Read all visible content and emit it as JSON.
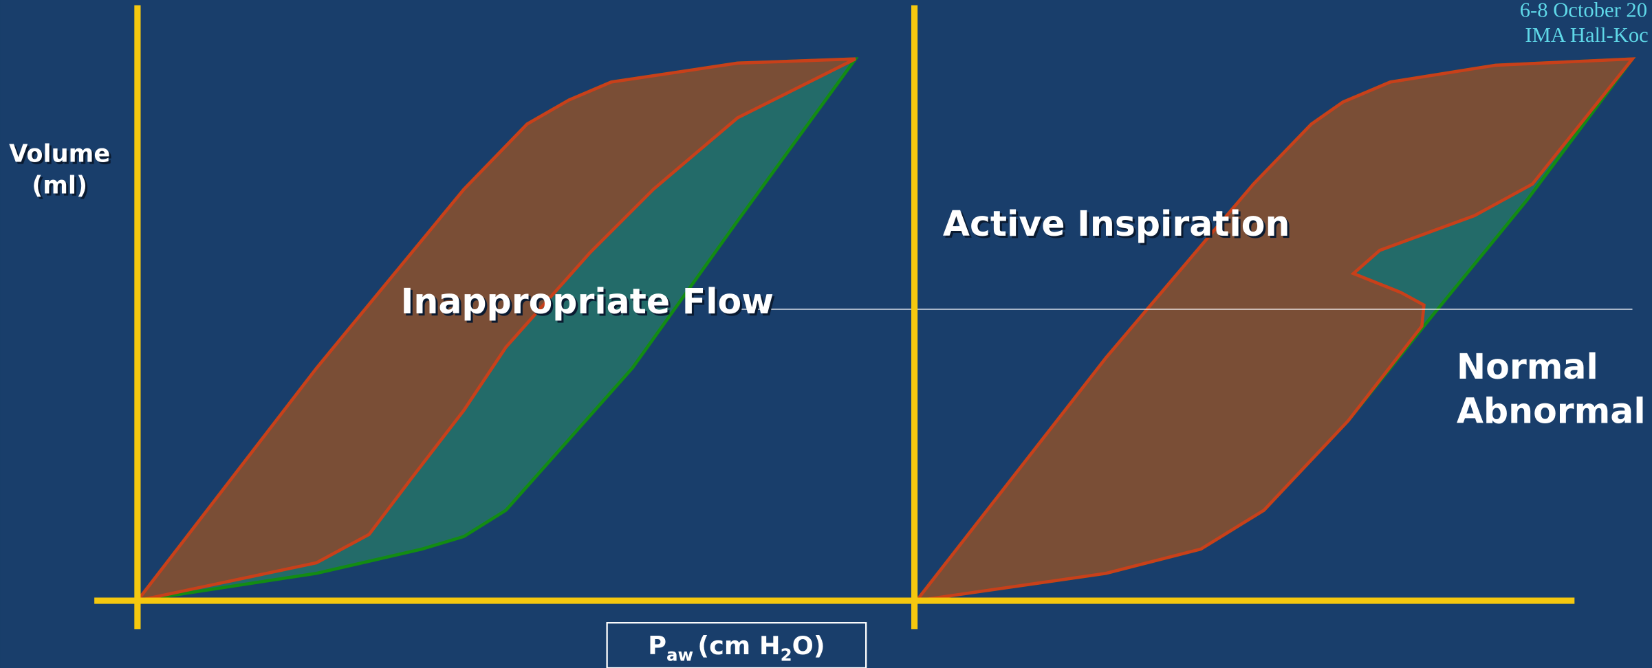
{
  "header": {
    "date": "6-8 October 20",
    "venue": "IMA Hall-Koc"
  },
  "y_axis_label": {
    "line1": "Volume",
    "line2": "(ml)"
  },
  "x_axis_label": {
    "p": "P",
    "sub": "aw",
    "unit_start": "(cm H",
    "unit_sub": "2",
    "unit_end": "O)"
  },
  "panels": [
    {
      "label": "Inappropriate Flow"
    },
    {
      "label": "Active Inspiration"
    }
  ],
  "legend": [
    {
      "label": "Normal",
      "color": "#138c13"
    },
    {
      "label": "Abnormal",
      "color": "#c8401a"
    }
  ]
}
